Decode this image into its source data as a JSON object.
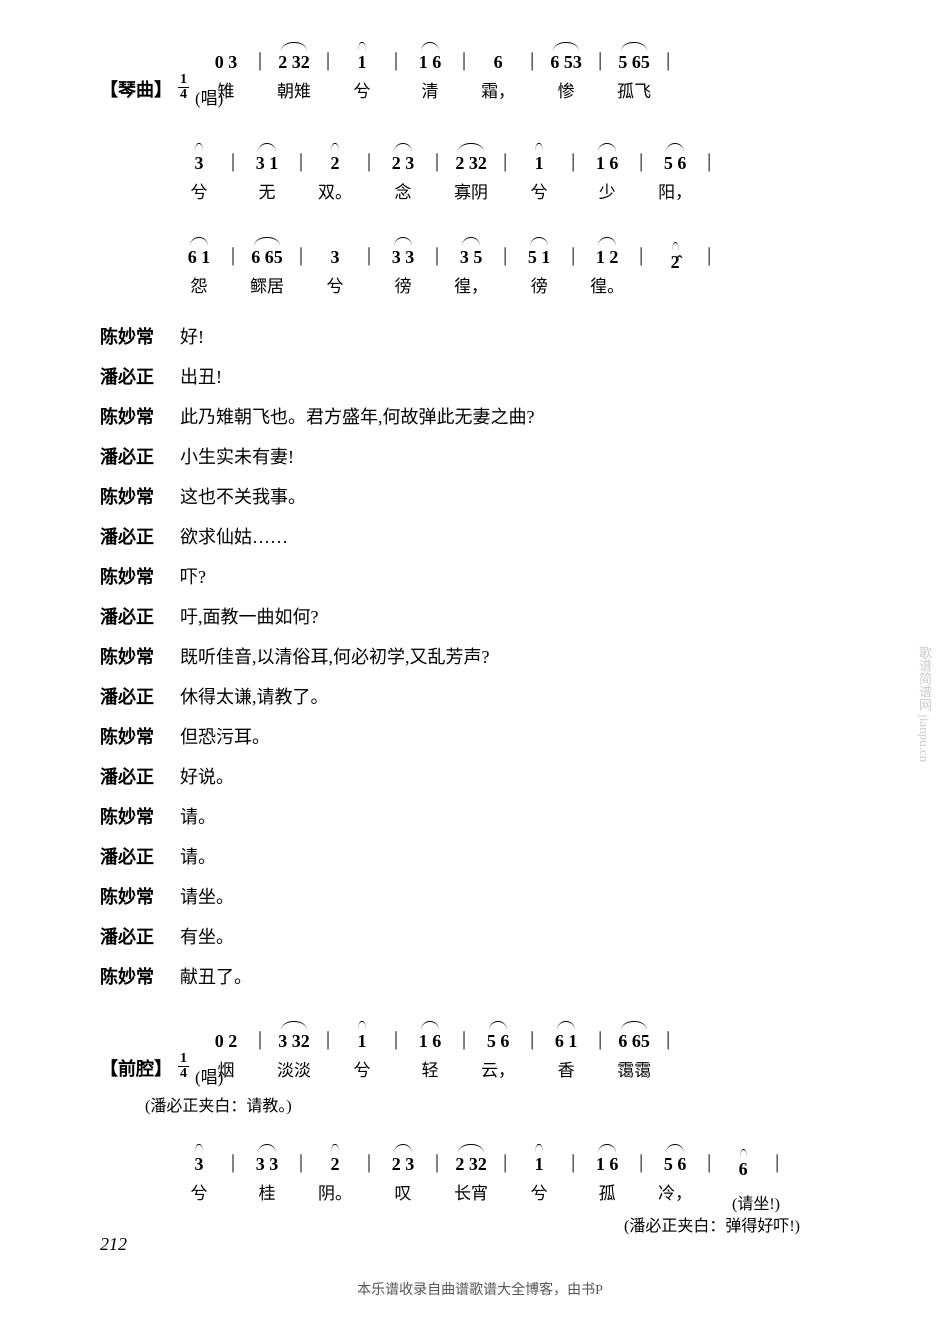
{
  "watermark": "歌谱简谱网 jianpu.cn",
  "page_number": "212",
  "footer": "本乐谱收录自曲谱歌谱大全博客，由书P",
  "section1": {
    "label": "【琴曲】",
    "time_top": "1",
    "time_bot": "4",
    "sing_prefix": "(唱)",
    "lines": [
      {
        "measures": [
          {
            "notes": "0 3",
            "lyric": "雉",
            "tie": false
          },
          {
            "notes": "2 32",
            "lyric": "朝雉",
            "tie": true
          },
          {
            "notes": "1",
            "lyric": "兮",
            "tie": true
          },
          {
            "notes": "1 6",
            "lyric": "清",
            "tie": true
          },
          {
            "notes": "6",
            "lyric": "霜，",
            "tie": false
          },
          {
            "notes": "6 53",
            "lyric": "惨",
            "tie": true
          },
          {
            "notes": "5 65",
            "lyric": "孤飞",
            "tie": true
          }
        ]
      },
      {
        "measures": [
          {
            "notes": "3",
            "lyric": "兮",
            "tie": true
          },
          {
            "notes": "3 1",
            "lyric": "无",
            "tie": true
          },
          {
            "notes": "2",
            "lyric": "双。",
            "tie": true
          },
          {
            "notes": "2 3",
            "lyric": "念",
            "tie": true
          },
          {
            "notes": "2 32",
            "lyric": "寡阴",
            "tie": true
          },
          {
            "notes": "1",
            "lyric": "兮",
            "tie": true
          },
          {
            "notes": "1 6",
            "lyric": "少",
            "tie": true
          },
          {
            "notes": "5 6",
            "lyric": "阳，",
            "tie": true
          }
        ]
      },
      {
        "measures": [
          {
            "notes": "6 1",
            "lyric": "怨",
            "tie": true
          },
          {
            "notes": "6 65",
            "lyric": "鳏居",
            "tie": true
          },
          {
            "notes": "3",
            "lyric": "兮",
            "tie": false
          },
          {
            "notes": "3 3",
            "lyric": "徬",
            "tie": true
          },
          {
            "notes": "3 5",
            "lyric": "徨，",
            "tie": true
          },
          {
            "notes": "5 1",
            "lyric": "徬",
            "tie": true
          },
          {
            "notes": "1 2",
            "lyric": "徨。",
            "tie": true
          },
          {
            "notes": "2̂",
            "lyric": "",
            "tie": true
          }
        ]
      }
    ]
  },
  "dialog": [
    {
      "speaker": "陈妙常",
      "text": "好!"
    },
    {
      "speaker": "潘必正",
      "text": "出丑!"
    },
    {
      "speaker": "陈妙常",
      "text": "此乃雉朝飞也。君方盛年,何故弹此无妻之曲?"
    },
    {
      "speaker": "潘必正",
      "text": "小生实未有妻!"
    },
    {
      "speaker": "陈妙常",
      "text": "这也不关我事。"
    },
    {
      "speaker": "潘必正",
      "text": "欲求仙姑……"
    },
    {
      "speaker": "陈妙常",
      "text": "吓?"
    },
    {
      "speaker": "潘必正",
      "text": "吁,面教一曲如何?"
    },
    {
      "speaker": "陈妙常",
      "text": "既听佳音,以清俗耳,何必初学,又乱芳声?"
    },
    {
      "speaker": "潘必正",
      "text": "休得太谦,请教了。"
    },
    {
      "speaker": "陈妙常",
      "text": "但恐污耳。"
    },
    {
      "speaker": "潘必正",
      "text": "好说。"
    },
    {
      "speaker": "陈妙常",
      "text": "请。"
    },
    {
      "speaker": "潘必正",
      "text": "请。"
    },
    {
      "speaker": "陈妙常",
      "text": "请坐。"
    },
    {
      "speaker": "潘必正",
      "text": "有坐。"
    },
    {
      "speaker": "陈妙常",
      "text": "献丑了。"
    }
  ],
  "section2": {
    "label": "【前腔】",
    "time_top": "1",
    "time_bot": "4",
    "sing_prefix": "(唱)",
    "stage_note1": "(潘必正夹白：请教。)",
    "stage_note2": "(潘必正夹白：弹得好吓!)",
    "stage_note3": "(请坐!)",
    "lines": [
      {
        "measures": [
          {
            "notes": "0 2",
            "lyric": "烟",
            "tie": false
          },
          {
            "notes": "3 32",
            "lyric": "淡淡",
            "tie": true
          },
          {
            "notes": "1",
            "lyric": "兮",
            "tie": true
          },
          {
            "notes": "1 6",
            "lyric": "轻",
            "tie": true
          },
          {
            "notes": "5 6",
            "lyric": "云，",
            "tie": true
          },
          {
            "notes": "6 1",
            "lyric": "香",
            "tie": true
          },
          {
            "notes": "6 65",
            "lyric": "霭霭",
            "tie": true
          }
        ]
      },
      {
        "measures": [
          {
            "notes": "3",
            "lyric": "兮",
            "tie": true
          },
          {
            "notes": "3 3",
            "lyric": "桂",
            "tie": true
          },
          {
            "notes": "2",
            "lyric": "阴。",
            "tie": true
          },
          {
            "notes": "2 3",
            "lyric": "叹",
            "tie": true
          },
          {
            "notes": "2 32",
            "lyric": "长宵",
            "tie": true
          },
          {
            "notes": "1",
            "lyric": "兮",
            "tie": true
          },
          {
            "notes": "1 6",
            "lyric": "孤",
            "tie": true
          },
          {
            "notes": "5 6",
            "lyric": "冷，",
            "tie": true
          },
          {
            "notes": "6",
            "lyric": "",
            "tie": true
          }
        ]
      }
    ]
  }
}
